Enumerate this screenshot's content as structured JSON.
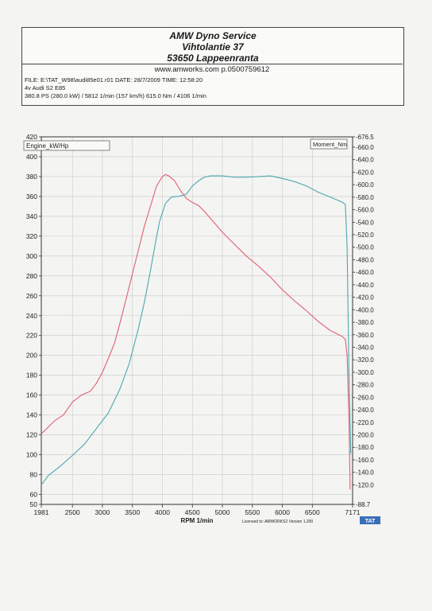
{
  "header": {
    "title": "AMW Dyno Service",
    "address_line": "Vihtolantie 37",
    "city_line": "53650 Lappeenranta",
    "website": "www.amworks.com p.0500759612"
  },
  "info": {
    "line1": "FILE: E:\\TAT_W98\\audi85e01.r01  DATE: 28/7/2009  TIME: 12:58:20",
    "line2": "4v Audi S2 E85",
    "line3": "380.8 PS  (280.0 kW) / 5812 1/min (157 km/h)    615.0 Nm / 4106 1/min"
  },
  "footer": {
    "license_text": "Licensed to: AMWORKS2   Version 1.200",
    "logo_text": "TAT"
  },
  "chart_data": {
    "type": "line",
    "xlabel": "RPM  1/min",
    "x_range": [
      1981,
      7171
    ],
    "x_ticks": [
      1981,
      2500,
      3000,
      3500,
      4000,
      4500,
      5000,
      5500,
      6000,
      6500,
      7171
    ],
    "left_axis": {
      "label": "Engine_kW/Hp",
      "range": [
        50,
        420
      ],
      "ticks": [
        50,
        60,
        80,
        100,
        120,
        140,
        160,
        180,
        200,
        220,
        240,
        260,
        280,
        300,
        320,
        340,
        360,
        380,
        400,
        420
      ]
    },
    "right_axis": {
      "label": "Moment_Nm",
      "range": [
        88.7,
        676.5
      ],
      "ticks": [
        88.7,
        120,
        140,
        160,
        180,
        200,
        220,
        240,
        260,
        280,
        300,
        320,
        340,
        360,
        380,
        400,
        420,
        440,
        460,
        480,
        500,
        520,
        540,
        560,
        580,
        600,
        620,
        640,
        660,
        676.5
      ],
      "tick_labels": [
        "-88.7",
        "-120.0",
        "-140.0",
        "-160.0",
        "-180.0",
        "-200.0",
        "-220.0",
        "-240.0",
        "-260.0",
        "-280.0",
        "-300.0",
        "-320.0",
        "-340.0",
        "-360.0",
        "-380.0",
        "-400.0",
        "-420.0",
        "-440.0",
        "-460.0",
        "-480.0",
        "-500.0",
        "-520.0",
        "-540.0",
        "-560.0",
        "-580.0",
        "-600.0",
        "-620.0",
        "-640.0",
        "-660.0",
        "-676.5"
      ]
    },
    "grid": true,
    "series": [
      {
        "color": "#e06070",
        "axis": "left",
        "points": [
          [
            1981,
            121
          ],
          [
            2100,
            128
          ],
          [
            2200,
            134
          ],
          [
            2350,
            140
          ],
          [
            2500,
            153
          ],
          [
            2650,
            160
          ],
          [
            2800,
            164
          ],
          [
            2900,
            172
          ],
          [
            3000,
            183
          ],
          [
            3100,
            197
          ],
          [
            3200,
            212
          ],
          [
            3300,
            234
          ],
          [
            3400,
            258
          ],
          [
            3500,
            282
          ],
          [
            3600,
            306
          ],
          [
            3700,
            330
          ],
          [
            3800,
            350
          ],
          [
            3900,
            370
          ],
          [
            4000,
            380
          ],
          [
            4050,
            382
          ],
          [
            4100,
            381
          ],
          [
            4200,
            376
          ],
          [
            4300,
            366
          ],
          [
            4400,
            358
          ],
          [
            4500,
            354
          ],
          [
            4600,
            351
          ],
          [
            4700,
            345
          ],
          [
            4800,
            338
          ],
          [
            4900,
            331
          ],
          [
            5000,
            324
          ],
          [
            5200,
            312
          ],
          [
            5400,
            300
          ],
          [
            5600,
            290
          ],
          [
            5800,
            279
          ],
          [
            6000,
            266
          ],
          [
            6200,
            255
          ],
          [
            6400,
            245
          ],
          [
            6600,
            234
          ],
          [
            6800,
            225
          ],
          [
            7000,
            219
          ],
          [
            7050,
            216
          ],
          [
            7080,
            200
          ],
          [
            7110,
            140
          ],
          [
            7130,
            65
          ]
        ]
      },
      {
        "color": "#4aa8b0",
        "axis": "right",
        "points": [
          [
            1981,
            120
          ],
          [
            2100,
            135
          ],
          [
            2300,
            150
          ],
          [
            2500,
            167
          ],
          [
            2700,
            185
          ],
          [
            2900,
            210
          ],
          [
            3100,
            235
          ],
          [
            3300,
            275
          ],
          [
            3450,
            315
          ],
          [
            3600,
            370
          ],
          [
            3700,
            412
          ],
          [
            3800,
            462
          ],
          [
            3900,
            515
          ],
          [
            3950,
            540
          ],
          [
            4000,
            555
          ],
          [
            4050,
            570
          ],
          [
            4150,
            580
          ],
          [
            4300,
            582
          ],
          [
            4400,
            585
          ],
          [
            4500,
            598
          ],
          [
            4600,
            606
          ],
          [
            4700,
            612
          ],
          [
            4800,
            614
          ],
          [
            5000,
            614
          ],
          [
            5200,
            612
          ],
          [
            5400,
            612
          ],
          [
            5600,
            613
          ],
          [
            5800,
            614
          ],
          [
            6000,
            610
          ],
          [
            6200,
            605
          ],
          [
            6400,
            598
          ],
          [
            6600,
            588
          ],
          [
            6800,
            580
          ],
          [
            7000,
            572
          ],
          [
            7050,
            568
          ],
          [
            7080,
            500
          ],
          [
            7110,
            300
          ],
          [
            7140,
            170
          ]
        ]
      }
    ]
  }
}
